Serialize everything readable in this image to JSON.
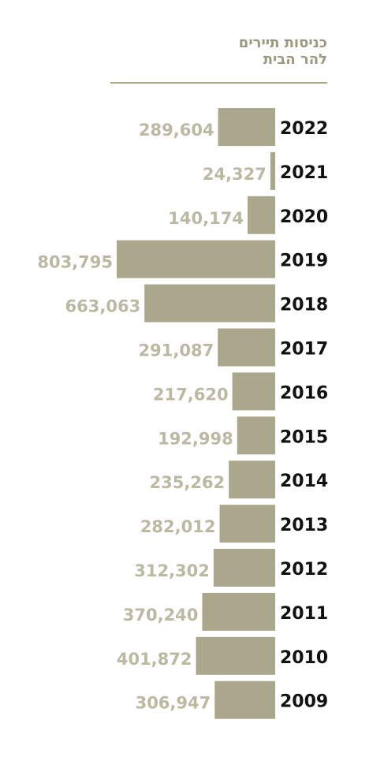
{
  "chart_data": {
    "type": "hbar",
    "title": "כניסות תיירים",
    "subtitle": "להר הבית",
    "categories": [
      "2022",
      "2021",
      "2020",
      "2019",
      "2018",
      "2017",
      "2016",
      "2015",
      "2014",
      "2013",
      "2012",
      "2011",
      "2010",
      "2009"
    ],
    "values": [
      289604,
      24327,
      140174,
      803795,
      663063,
      291087,
      217620,
      192998,
      235262,
      282012,
      312302,
      370240,
      401872,
      306947
    ],
    "value_labels": [
      "289,604",
      "24,327",
      "140,174",
      "803,795",
      "663,063",
      "291,087",
      "217,620",
      "192,998",
      "235,262",
      "282,012",
      "312,302",
      "370,240",
      "401,872",
      "306,947"
    ],
    "color": "#aba78c"
  }
}
